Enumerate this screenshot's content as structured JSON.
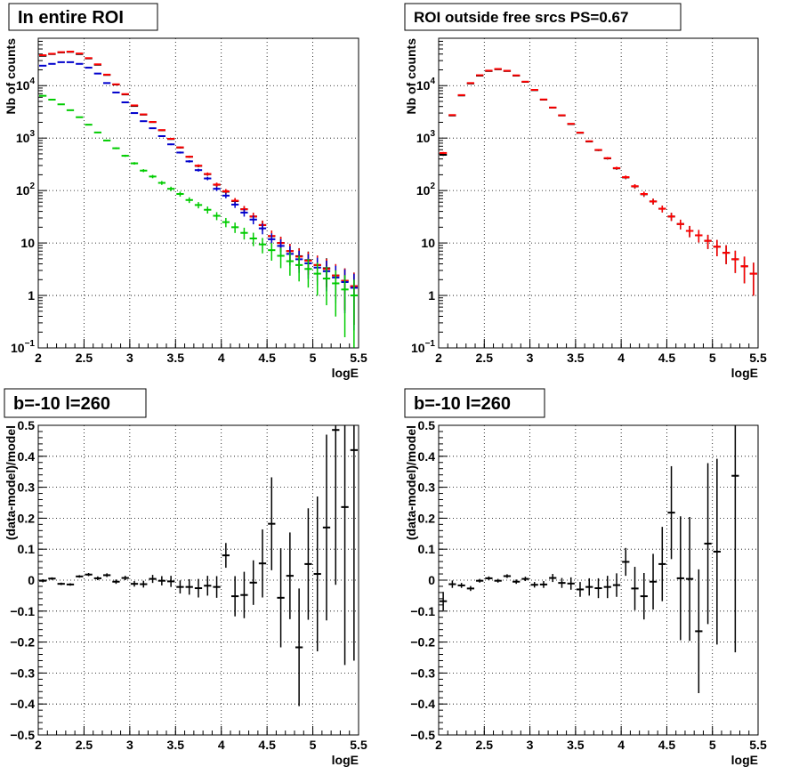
{
  "chart_data": [
    {
      "type": "scatter",
      "title": "In entire ROI",
      "xlabel": "logE",
      "ylabel": "Nb of counts",
      "xlim": [
        2,
        5.5
      ],
      "ylim": [
        0.1,
        80000
      ],
      "yscale": "log",
      "grid": true,
      "x_ticks": [
        "2",
        "2.5",
        "3",
        "3.5",
        "4",
        "4.5",
        "5",
        "5.5"
      ],
      "y_ticks": [
        {
          "value": 0.1,
          "base": "10",
          "exp": "−1"
        },
        {
          "value": 1,
          "label": "1"
        },
        {
          "value": 10,
          "label": "10"
        },
        {
          "value": 100,
          "base": "10",
          "exp": "2"
        },
        {
          "value": 1000,
          "base": "10",
          "exp": "3"
        },
        {
          "value": 10000,
          "base": "10",
          "exp": "4"
        }
      ],
      "bin_half_width": 0.05,
      "series": [
        {
          "color": "#000000",
          "x": [
            2.05,
            2.15,
            2.25,
            2.35,
            2.45,
            2.55,
            2.65,
            2.75,
            2.85,
            2.95,
            3.05,
            3.15,
            3.25,
            3.35,
            3.45,
            3.55,
            3.65,
            3.75,
            3.85,
            3.95,
            4.05,
            4.15,
            4.25,
            4.35,
            4.45,
            4.55,
            4.65,
            4.75,
            4.85,
            4.95,
            5.05,
            5.15,
            5.25,
            5.35,
            5.45
          ],
          "y": [
            37000,
            40000,
            43000,
            44000,
            40000,
            33000,
            25000,
            16000,
            10500,
            6800,
            4100,
            2800,
            2020,
            1410,
            960,
            660,
            440,
            295,
            205,
            129,
            95,
            63,
            44,
            32,
            22,
            13.5,
            10,
            7,
            5.6,
            4.7,
            3.8,
            3.3,
            2.4,
            1.9,
            1.5
          ]
        },
        {
          "color": "#ff0000",
          "x": [
            2.05,
            2.15,
            2.25,
            2.35,
            2.45,
            2.55,
            2.65,
            2.75,
            2.85,
            2.95,
            3.05,
            3.15,
            3.25,
            3.35,
            3.45,
            3.55,
            3.65,
            3.75,
            3.85,
            3.95,
            4.05,
            4.15,
            4.25,
            4.35,
            4.45,
            4.55,
            4.65,
            4.75,
            4.85,
            4.95,
            5.05,
            5.15,
            5.25,
            5.35,
            5.45
          ],
          "y": [
            38000,
            40500,
            43500,
            44500,
            41000,
            33500,
            25500,
            16200,
            10600,
            6900,
            4200,
            2830,
            2030,
            1420,
            970,
            665,
            442,
            298,
            207,
            130,
            97,
            64,
            44,
            32,
            22,
            13.6,
            10,
            7,
            5.5,
            4.6,
            3.8,
            3.2,
            2.4,
            1.9,
            1.5
          ]
        },
        {
          "color": "#0000cc",
          "x": [
            2.05,
            2.15,
            2.25,
            2.35,
            2.45,
            2.55,
            2.65,
            2.75,
            2.85,
            2.95,
            3.05,
            3.15,
            3.25,
            3.35,
            3.45,
            3.55,
            3.65,
            3.75,
            3.85,
            3.95,
            4.05,
            4.15,
            4.25,
            4.35,
            4.45,
            4.55,
            4.65,
            4.75,
            4.85,
            4.95,
            5.05,
            5.15,
            5.25,
            5.35,
            5.45
          ],
          "y": [
            24000,
            26000,
            28000,
            28000,
            26000,
            22000,
            17000,
            11200,
            7400,
            4800,
            3000,
            2100,
            1540,
            1090,
            760,
            530,
            360,
            245,
            170,
            108,
            80,
            54,
            38,
            28,
            19,
            11.8,
            8.8,
            6.2,
            4.9,
            4.1,
            3.4,
            2.9,
            2.2,
            1.8,
            1.4
          ]
        },
        {
          "color": "#00cc00",
          "x": [
            2.05,
            2.15,
            2.25,
            2.35,
            2.45,
            2.55,
            2.65,
            2.75,
            2.85,
            2.95,
            3.05,
            3.15,
            3.25,
            3.35,
            3.45,
            3.55,
            3.65,
            3.75,
            3.85,
            3.95,
            4.05,
            4.15,
            4.25,
            4.35,
            4.45,
            4.55,
            4.65,
            4.75,
            4.85,
            4.95,
            5.05,
            5.15,
            5.25,
            5.35,
            5.45
          ],
          "y": [
            6400,
            5400,
            4400,
            3400,
            2500,
            1800,
            1280,
            900,
            640,
            460,
            330,
            240,
            185,
            140,
            108,
            86,
            66,
            53,
            43,
            33,
            25,
            20,
            15.6,
            12.2,
            9.4,
            7.3,
            5.7,
            4.5,
            3.8,
            3.2,
            2.6,
            2.1,
            1.7,
            1.3,
            1.0
          ]
        }
      ]
    },
    {
      "type": "scatter",
      "title": "ROI outside free srcs PS=0.67",
      "xlabel": "logE",
      "ylabel": "Nb of counts",
      "xlim": [
        2,
        5.5
      ],
      "ylim": [
        0.1,
        80000
      ],
      "yscale": "log",
      "grid": true,
      "x_ticks": [
        "2",
        "2.5",
        "3",
        "3.5",
        "4",
        "4.5",
        "5",
        "5.5"
      ],
      "y_ticks": [
        {
          "value": 0.1,
          "base": "10",
          "exp": "−1"
        },
        {
          "value": 1,
          "label": "1"
        },
        {
          "value": 10,
          "label": "10"
        },
        {
          "value": 100,
          "base": "10",
          "exp": "2"
        },
        {
          "value": 1000,
          "base": "10",
          "exp": "3"
        },
        {
          "value": 10000,
          "base": "10",
          "exp": "4"
        }
      ],
      "bin_half_width": 0.05,
      "series": [
        {
          "color": "#000000",
          "x": [
            2.05,
            2.15,
            2.25,
            2.35,
            2.45,
            2.55,
            2.65,
            2.75,
            2.85,
            2.95,
            3.05,
            3.15,
            3.25,
            3.35,
            3.45,
            3.55,
            3.65,
            3.75,
            3.85,
            3.95,
            4.05,
            4.15,
            4.25,
            4.35,
            4.45,
            4.55,
            4.65,
            4.75,
            4.85,
            4.95,
            5.05,
            5.15,
            5.25,
            5.35,
            5.45
          ],
          "y": [
            480,
            2700,
            6500,
            11000,
            15500,
            19000,
            20500,
            19000,
            15500,
            11800,
            8200,
            5400,
            3800,
            2700,
            1850,
            1260,
            860,
            590,
            410,
            265,
            178,
            120,
            85,
            62,
            45,
            32,
            23,
            17,
            14,
            11,
            8.5,
            6.5,
            4.9,
            3.6,
            2.6
          ]
        },
        {
          "color": "#ff0000",
          "x": [
            2.05,
            2.15,
            2.25,
            2.35,
            2.45,
            2.55,
            2.65,
            2.75,
            2.85,
            2.95,
            3.05,
            3.15,
            3.25,
            3.35,
            3.45,
            3.55,
            3.65,
            3.75,
            3.85,
            3.95,
            4.05,
            4.15,
            4.25,
            4.35,
            4.45,
            4.55,
            4.65,
            4.75,
            4.85,
            4.95,
            5.05,
            5.15,
            5.25,
            5.35,
            5.45
          ],
          "y": [
            520,
            2750,
            6600,
            11200,
            15800,
            19300,
            20800,
            19200,
            15700,
            11900,
            8300,
            5450,
            3830,
            2720,
            1870,
            1270,
            870,
            595,
            415,
            268,
            180,
            121,
            86,
            62,
            45,
            32,
            23,
            17,
            14,
            11,
            8.5,
            6.5,
            4.9,
            3.6,
            2.6
          ]
        }
      ]
    },
    {
      "type": "scatter",
      "title": "b=-10 l=260",
      "xlabel": "logE",
      "ylabel": "(data-model)/model",
      "xlim": [
        2,
        5.5
      ],
      "ylim": [
        -0.5,
        0.5
      ],
      "grid": true,
      "x_ticks": [
        "2",
        "2.5",
        "3",
        "3.5",
        "4",
        "4.5",
        "5",
        "5.5"
      ],
      "y_ticks": [
        "−0.5",
        "−0.4",
        "−0.3",
        "−0.2",
        "−0.1",
        "0",
        "0.1",
        "0.2",
        "0.3",
        "0.4",
        "0.5"
      ],
      "bin_half_width": 0.05,
      "series": [
        {
          "color": "#000000",
          "x": [
            2.05,
            2.15,
            2.25,
            2.35,
            2.45,
            2.55,
            2.65,
            2.75,
            2.85,
            2.95,
            3.05,
            3.15,
            3.25,
            3.35,
            3.45,
            3.55,
            3.65,
            3.75,
            3.85,
            3.95,
            4.05,
            4.15,
            4.25,
            4.35,
            4.45,
            4.55,
            4.65,
            4.75,
            4.85,
            4.95,
            5.05,
            5.15,
            5.25,
            5.35,
            5.45
          ],
          "y": [
            -0.002,
            0.005,
            -0.012,
            -0.014,
            0.012,
            0.018,
            0.006,
            0.016,
            -0.005,
            0.007,
            -0.012,
            -0.013,
            0.004,
            -0.002,
            -0.004,
            -0.022,
            -0.022,
            -0.026,
            -0.018,
            -0.022,
            0.08,
            -0.052,
            -0.048,
            -0.008,
            0.054,
            0.182,
            -0.057,
            0.014,
            -0.217,
            0.052,
            0.02,
            0.17,
            0.485,
            0.236,
            0.42
          ],
          "err": [
            0.005,
            0.004,
            0.004,
            0.004,
            0.004,
            0.005,
            0.006,
            0.006,
            0.007,
            0.007,
            0.009,
            0.011,
            0.013,
            0.015,
            0.018,
            0.021,
            0.025,
            0.03,
            0.032,
            0.035,
            0.04,
            0.065,
            0.075,
            0.072,
            0.11,
            0.15,
            0.16,
            0.14,
            0.19,
            0.18,
            0.25,
            0.3,
            0.5,
            0.51,
            0.68
          ]
        }
      ]
    },
    {
      "type": "scatter",
      "title": "b=-10 l=260",
      "xlabel": "logE",
      "ylabel": "(data-model)/model",
      "xlim": [
        2,
        5.5
      ],
      "ylim": [
        -0.5,
        0.5
      ],
      "grid": true,
      "x_ticks": [
        "2",
        "2.5",
        "3",
        "3.5",
        "4",
        "4.5",
        "5",
        "5.5"
      ],
      "y_ticks": [
        "−0.5",
        "−0.4",
        "−0.3",
        "−0.2",
        "−0.1",
        "0",
        "0.1",
        "0.2",
        "0.3",
        "0.4",
        "0.5"
      ],
      "bin_half_width": 0.05,
      "series": [
        {
          "color": "#000000",
          "x": [
            2.05,
            2.15,
            2.25,
            2.35,
            2.45,
            2.55,
            2.65,
            2.75,
            2.85,
            2.95,
            3.05,
            3.15,
            3.25,
            3.35,
            3.45,
            3.55,
            3.65,
            3.75,
            3.85,
            3.95,
            4.05,
            4.15,
            4.25,
            4.35,
            4.45,
            4.55,
            4.65,
            4.75,
            4.85,
            4.95,
            5.05,
            5.15,
            5.25,
            5.35,
            5.45
          ],
          "y": [
            -0.068,
            -0.013,
            -0.017,
            -0.027,
            -0.002,
            0.006,
            -0.002,
            0.013,
            -0.005,
            0.004,
            -0.015,
            -0.014,
            0.007,
            -0.009,
            -0.011,
            -0.03,
            -0.022,
            -0.026,
            -0.022,
            -0.016,
            0.059,
            -0.027,
            -0.052,
            -0.005,
            0.052,
            0.218,
            0.006,
            0.004,
            -0.165,
            0.118,
            0.092,
            null,
            0.337,
            null,
            null
          ],
          "err": [
            0.03,
            0.012,
            0.008,
            0.008,
            0.006,
            0.006,
            0.006,
            0.006,
            0.007,
            0.007,
            0.009,
            0.011,
            0.013,
            0.016,
            0.02,
            0.024,
            0.028,
            0.032,
            0.036,
            0.038,
            0.045,
            0.07,
            0.075,
            0.09,
            0.12,
            0.15,
            0.2,
            0.2,
            0.2,
            0.26,
            0.3,
            0,
            0.57,
            0,
            0
          ]
        }
      ]
    }
  ]
}
